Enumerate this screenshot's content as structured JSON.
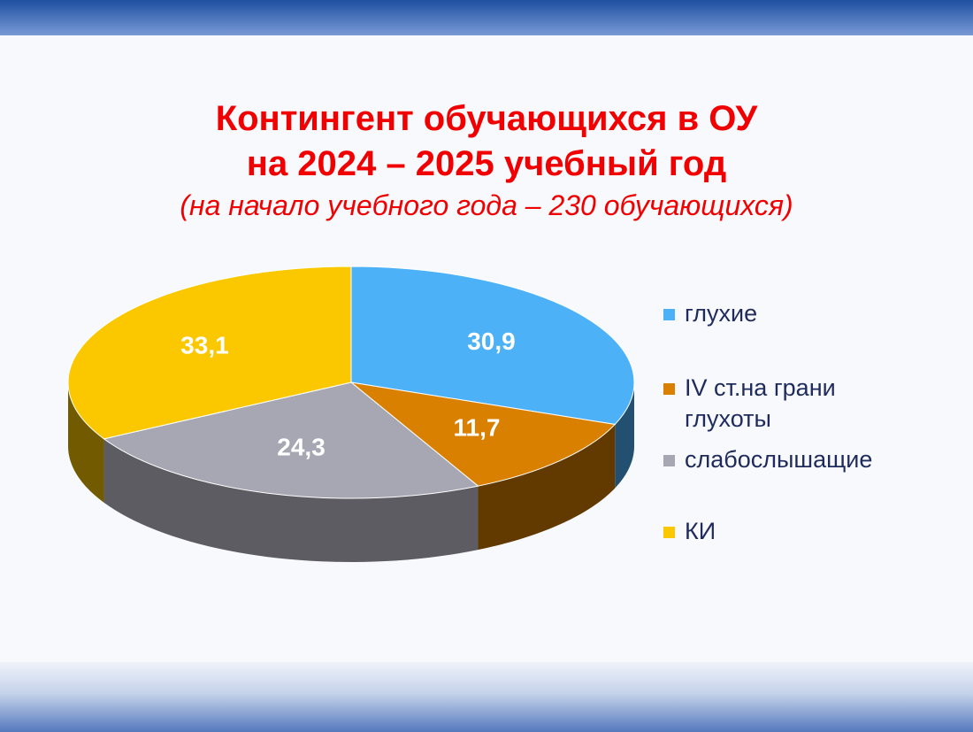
{
  "chart_data": {
    "type": "pie",
    "title": [
      "Контингент обучающихся в ОУ",
      "на 2024 – 2025 учебный год"
    ],
    "subtitle": "(на начало учебного года – 230 обучающихся)",
    "categories": [
      "глухие",
      "IV ст.на грани глухоты",
      "слабослышащие",
      "КИ"
    ],
    "values": [
      30.9,
      11.7,
      24.3,
      33.1
    ],
    "value_labels": [
      "30,9",
      "11,7",
      "24,3",
      "33,1"
    ],
    "colors": [
      "#4db1f8",
      "#d98000",
      "#a7a7b3",
      "#fbc800"
    ],
    "legend": "right"
  }
}
